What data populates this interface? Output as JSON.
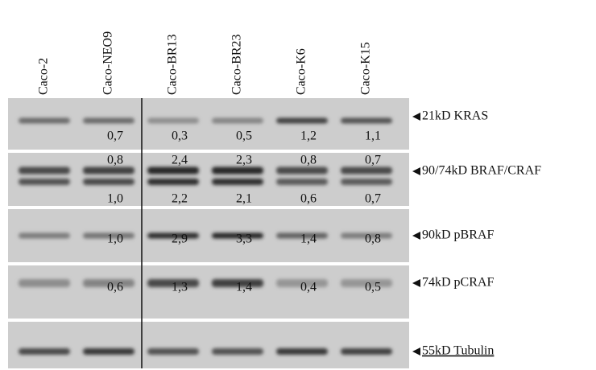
{
  "lanes": [
    "Caco-2",
    "Caco-NEO9",
    "Caco-BR13",
    "Caco-BR23",
    "Caco-K6",
    "Caco-K15"
  ],
  "panels": [
    {
      "label": "21kD KRAS",
      "values": [
        "0,7",
        "0,3",
        "0,5",
        "1,2",
        "1,1"
      ]
    },
    {
      "label": "90/74kD BRAF/CRAF",
      "values_top": [
        "0,8",
        "2,4",
        "2,3",
        "0,8",
        "0,7"
      ],
      "values": [
        "1,0",
        "2,2",
        "2,1",
        "0,6",
        "0,7"
      ]
    },
    {
      "label": "90kD pBRAF",
      "values": [
        "1,0",
        "2,9",
        "3,3",
        "1,4",
        "0,8"
      ]
    },
    {
      "label": "74kD pCRAF",
      "values": [
        "0,6",
        "1,3",
        "1,4",
        "0,4",
        "0,5"
      ]
    },
    {
      "label": "55kD Tubulin"
    }
  ]
}
